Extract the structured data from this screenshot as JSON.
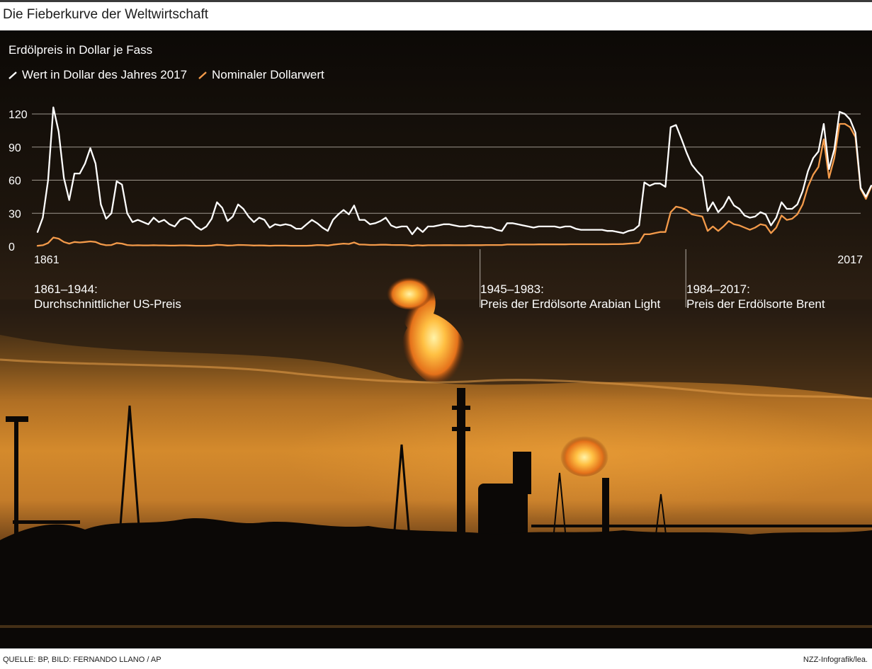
{
  "headline": "Die Fieberkurve der Weltwirtschaft",
  "source": "QUELLE: BP, BILD: FERNANDO LLANO / AP",
  "credit": "NZZ-Infografik/lea.",
  "colors": {
    "real": "#ffffff",
    "nominal": "#f39a4a",
    "background_photo": "#3a2614"
  },
  "annotations": [
    {
      "line1": "1861–1944:",
      "line2": "Durchschnittlicher US-Preis",
      "from_year": 1861
    },
    {
      "line1": "1945–1983:",
      "line2": "Preis der Erdölsorte Arabian Light",
      "from_year": 1945
    },
    {
      "line1": "1984–2017:",
      "line2": "Preis der Erdölsorte Brent",
      "from_year": 1984
    }
  ],
  "chart_data": {
    "type": "line",
    "title": "Erdölpreis in Dollar je Fass",
    "xlabel": "",
    "ylabel": "",
    "xlim": [
      1861,
      2017
    ],
    "ylim": [
      0,
      120
    ],
    "yticks": [
      0,
      30,
      60,
      90,
      120
    ],
    "xtick_labels": [
      "1861",
      "2017"
    ],
    "grid": "horizontal",
    "legend_position": "top-left",
    "x_start": 1861,
    "series": [
      {
        "name": "Wert in Dollar des Jahres 2017",
        "color": "#ffffff",
        "values": [
          13,
          26,
          60,
          126,
          104,
          62,
          42,
          66,
          66,
          75,
          89,
          75,
          38,
          25,
          30,
          59,
          56,
          30,
          22,
          24,
          22,
          20,
          26,
          22,
          24,
          20,
          18,
          24,
          26,
          24,
          18,
          15,
          18,
          25,
          40,
          35,
          23,
          27,
          38,
          34,
          27,
          22,
          26,
          24,
          17,
          20,
          19,
          20,
          19,
          16,
          16,
          20,
          24,
          21,
          17,
          14,
          24,
          29,
          33,
          29,
          37,
          24,
          24,
          20,
          21,
          23,
          26,
          19,
          17,
          18,
          18,
          11,
          17,
          13,
          18,
          18,
          19,
          20,
          20,
          19,
          18,
          18,
          19,
          18,
          18,
          17,
          17,
          15,
          14,
          21,
          21,
          20,
          19,
          18,
          17,
          18,
          18,
          18,
          18,
          17,
          18,
          18,
          16,
          15,
          15,
          15,
          15,
          15,
          14,
          14,
          13,
          12,
          14,
          15,
          19,
          58,
          55,
          57,
          57,
          54,
          108,
          110,
          98,
          85,
          74,
          68,
          63,
          32,
          40,
          31,
          36,
          45,
          37,
          34,
          28,
          26,
          27,
          31,
          29,
          19,
          26,
          40,
          34,
          34,
          38,
          50,
          68,
          80,
          86,
          111,
          70,
          88,
          122,
          120,
          115,
          103,
          53,
          45,
          55
        ]
      },
      {
        "name": "Nominaler Dollarwert",
        "color": "#f39a4a",
        "values": [
          0.5,
          1,
          3,
          8,
          7,
          4,
          2.5,
          4,
          3.5,
          4,
          4.5,
          4,
          2,
          1,
          1.2,
          3,
          2.5,
          1.2,
          0.9,
          1,
          0.9,
          0.9,
          1,
          0.9,
          0.9,
          0.7,
          0.7,
          0.9,
          0.9,
          0.8,
          0.6,
          0.6,
          0.6,
          0.8,
          1.4,
          1.2,
          0.8,
          0.9,
          1.3,
          1.2,
          1,
          0.8,
          0.9,
          0.8,
          0.6,
          0.7,
          0.7,
          0.7,
          0.6,
          0.6,
          0.6,
          0.6,
          0.8,
          1.2,
          1.1,
          0.8,
          1.5,
          2,
          2.5,
          2.2,
          3.5,
          1.7,
          1.6,
          1.3,
          1.3,
          1.5,
          1.5,
          1.3,
          1.2,
          1.2,
          1,
          0.6,
          1,
          0.8,
          1,
          1,
          1,
          1.1,
          1.1,
          1,
          1,
          1,
          1.1,
          1.1,
          1.1,
          1.2,
          1.2,
          1.2,
          1.2,
          1.7,
          1.7,
          1.7,
          1.7,
          1.7,
          1.7,
          1.8,
          1.8,
          1.8,
          1.8,
          1.8,
          1.8,
          1.9,
          1.9,
          1.9,
          1.9,
          1.9,
          1.9,
          1.9,
          1.9,
          2,
          2,
          2.1,
          2.5,
          2.8,
          3.3,
          11,
          11,
          12,
          13,
          13,
          31,
          36,
          35,
          33,
          29,
          28,
          27,
          14,
          18,
          14,
          18,
          23,
          20,
          19,
          17,
          15,
          17,
          20,
          19,
          12,
          17,
          28,
          24,
          25,
          29,
          38,
          54,
          65,
          72,
          97,
          62,
          80,
          111,
          111,
          108,
          99,
          52,
          43,
          54
        ]
      }
    ]
  }
}
